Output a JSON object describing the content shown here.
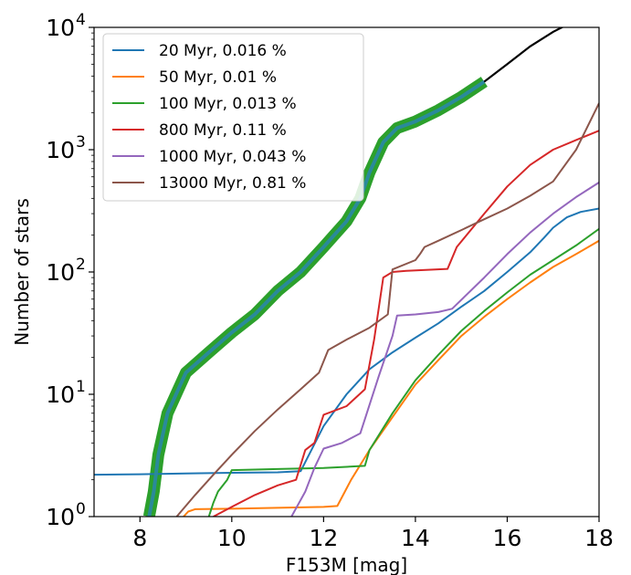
{
  "chart_data": {
    "type": "line",
    "title": "",
    "xlabel": "F153M [mag]",
    "ylabel": "Number of stars",
    "xlim": [
      7,
      18
    ],
    "ylim": [
      1,
      10000
    ],
    "yscale": "log",
    "grid": false,
    "legend_position": "top-left",
    "x_ticks": [
      {
        "value": 8,
        "label": "8"
      },
      {
        "value": 10,
        "label": "10"
      },
      {
        "value": 12,
        "label": "12"
      },
      {
        "value": 14,
        "label": "14"
      },
      {
        "value": 16,
        "label": "16"
      },
      {
        "value": 18,
        "label": "18"
      }
    ],
    "y_ticks": [
      {
        "value": 1,
        "base": "10",
        "exp": "0"
      },
      {
        "value": 10,
        "base": "10",
        "exp": "1"
      },
      {
        "value": 100,
        "base": "10",
        "exp": "2"
      },
      {
        "value": 1000,
        "base": "10",
        "exp": "3"
      },
      {
        "value": 10000,
        "base": "10",
        "exp": "4"
      }
    ],
    "observed_total": {
      "color": "#000000",
      "x": [
        8.2,
        8.3,
        8.4,
        8.6,
        9.0,
        9.5,
        10.0,
        10.5,
        11.0,
        11.5,
        12.0,
        12.5,
        12.8,
        13.0,
        13.3,
        13.6,
        14.0,
        14.5,
        15.0,
        15.5,
        16.0,
        16.5,
        17.0,
        17.3,
        17.6,
        18.0
      ],
      "y": [
        1.0,
        1.6,
        3.2,
        7,
        15,
        22,
        32,
        45,
        70,
        100,
        160,
        260,
        400,
        650,
        1150,
        1500,
        1700,
        2100,
        2700,
        3600,
        5000,
        7000,
        9200,
        10500,
        11500,
        12500
      ]
    },
    "observed_band": {
      "color": "#2ca02c",
      "x": [
        8.2,
        8.3,
        8.4,
        8.6,
        9.0,
        9.5,
        10.0,
        10.5,
        11.0,
        11.5,
        12.0,
        12.5,
        12.8,
        13.0,
        13.3,
        13.6,
        14.0,
        14.5,
        15.0,
        15.5
      ],
      "y": [
        1.0,
        1.6,
        3.2,
        7,
        15,
        22,
        32,
        45,
        70,
        100,
        160,
        260,
        400,
        650,
        1150,
        1500,
        1700,
        2100,
        2700,
        3600
      ]
    },
    "series": [
      {
        "name": "20 Myr,    0.016 %",
        "color": "#1f77b4",
        "x": [
          7,
          8,
          9,
          10,
          11,
          11.5,
          12,
          12.5,
          13,
          13.5,
          14,
          14.5,
          15,
          15.5,
          16,
          16.5,
          16.8,
          17,
          17.3,
          17.6,
          18
        ],
        "y": [
          2.2,
          2.22,
          2.25,
          2.28,
          2.3,
          2.35,
          5.5,
          10,
          16,
          22,
          29,
          38,
          52,
          70,
          100,
          145,
          190,
          230,
          280,
          310,
          330
        ]
      },
      {
        "name": "50 Myr,     0.01 %",
        "color": "#ff7f0e",
        "x": [
          8.95,
          9.05,
          9.2,
          10,
          11,
          12,
          12.3,
          12.6,
          13,
          13.5,
          14,
          14.5,
          15,
          15.5,
          16,
          16.5,
          17,
          17.5,
          18
        ],
        "y": [
          1.0,
          1.1,
          1.15,
          1.16,
          1.18,
          1.2,
          1.22,
          2.0,
          3.5,
          6.5,
          12,
          19,
          30,
          43,
          60,
          82,
          110,
          140,
          180
        ]
      },
      {
        "name": "100 Myr,    0.013 %",
        "color": "#2ca02c",
        "x": [
          9.5,
          9.6,
          9.7,
          9.9,
          10,
          11,
          12,
          12.5,
          12.9,
          13,
          13.5,
          14,
          14.5,
          15,
          15.5,
          16,
          16.5,
          17,
          17.5,
          18
        ],
        "y": [
          1.0,
          1.3,
          1.6,
          2.0,
          2.4,
          2.45,
          2.5,
          2.55,
          2.6,
          3.5,
          7,
          13,
          21,
          33,
          48,
          68,
          95,
          125,
          165,
          225
        ]
      },
      {
        "name": "800 Myr,     0.11 %",
        "color": "#d62728",
        "x": [
          9.6,
          10,
          10.5,
          11,
          11.4,
          11.6,
          11.8,
          12,
          12.5,
          12.9,
          13.1,
          13.3,
          13.5,
          13.8,
          14.7,
          14.9,
          15.5,
          16,
          16.5,
          17,
          17.5,
          18
        ],
        "y": [
          1.0,
          1.2,
          1.5,
          1.8,
          2.0,
          3.5,
          4.0,
          6.8,
          8.0,
          11,
          28,
          90,
          100,
          102,
          106,
          160,
          300,
          500,
          750,
          1000,
          1200,
          1430
        ]
      },
      {
        "name": "1000 Myr,    0.043 %",
        "color": "#9467bd",
        "x": [
          11.3,
          11.6,
          11.8,
          12,
          12.4,
          12.8,
          13.2,
          13.5,
          13.6,
          14,
          14.5,
          14.8,
          15.5,
          16,
          16.5,
          17,
          17.5,
          18
        ],
        "y": [
          1.0,
          1.6,
          2.5,
          3.6,
          4.0,
          4.8,
          14,
          30,
          44,
          45,
          47,
          50,
          90,
          140,
          210,
          300,
          410,
          540
        ]
      },
      {
        "name": "13000 Myr,    0.81 %",
        "color": "#8c564b",
        "x": [
          8.8,
          9.2,
          9.6,
          10,
          10.5,
          11,
          11.5,
          11.9,
          12.1,
          12.5,
          13,
          13.4,
          13.5,
          14,
          14.1,
          14.2,
          14.5,
          15,
          15.5,
          16,
          16.5,
          17,
          17.5,
          18
        ],
        "y": [
          1.0,
          1.5,
          2.2,
          3.2,
          5.0,
          7.5,
          11,
          15,
          23,
          28,
          35,
          45,
          105,
          125,
          140,
          160,
          180,
          220,
          270,
          330,
          420,
          550,
          1000,
          2400
        ]
      }
    ]
  }
}
